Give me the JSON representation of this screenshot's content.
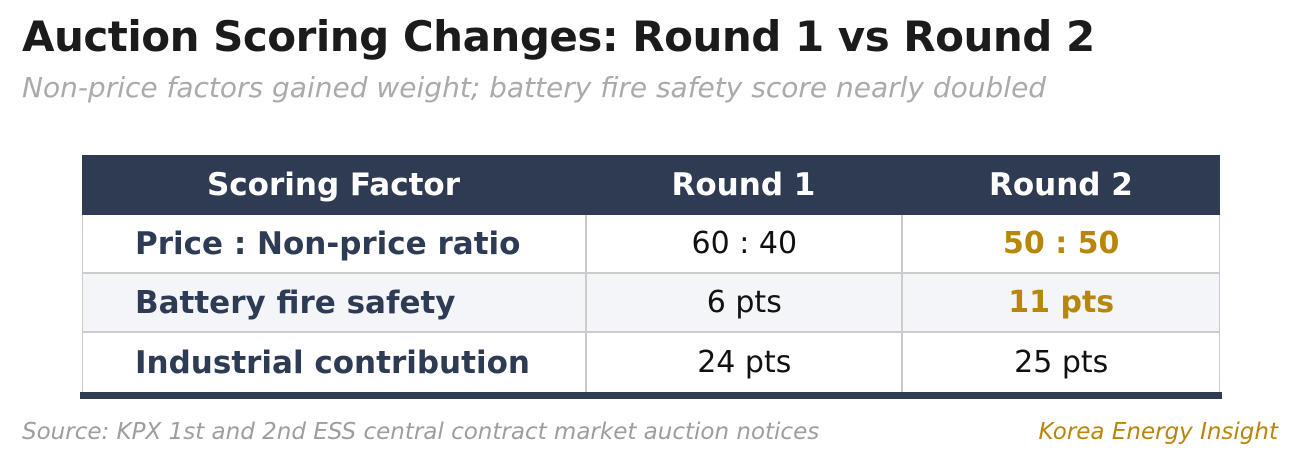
{
  "title": "Auction Scoring Changes: Round 1 vs Round 2",
  "subtitle": "Non-price factors gained weight; battery fire safety score nearly doubled",
  "chart_data": {
    "type": "table",
    "title": "Auction Scoring Changes: Round 1 vs Round 2",
    "subtitle": "Non-price factors gained weight; battery fire safety score nearly doubled",
    "columns": [
      "Scoring Factor",
      "Round 1",
      "Round 2"
    ],
    "rows": [
      {
        "factor": "Price : Non-price ratio",
        "round1": "60 : 40",
        "round2": "50 : 50",
        "round2_highlighted": true
      },
      {
        "factor": "Battery fire safety",
        "round1": "6 pts",
        "round2": "11 pts",
        "round2_highlighted": true
      },
      {
        "factor": "Industrial contribution",
        "round1": "24 pts",
        "round2": "25 pts",
        "round2_highlighted": false
      }
    ],
    "legend": "none",
    "grid": "table-borders"
  },
  "footer": {
    "source": "Source: KPX 1st and 2nd ESS central contract market auction notices",
    "brand": "Korea Energy Insight"
  },
  "colors": {
    "header_bg": "#2e3b52",
    "factor_navy": "#2e3b55",
    "accent_gold": "#b8860b",
    "row_stripe": "#f3f5f8",
    "border_gray": "#cccccc",
    "subtitle_gray": "#ababab",
    "source_gray": "#9e9e9e"
  }
}
